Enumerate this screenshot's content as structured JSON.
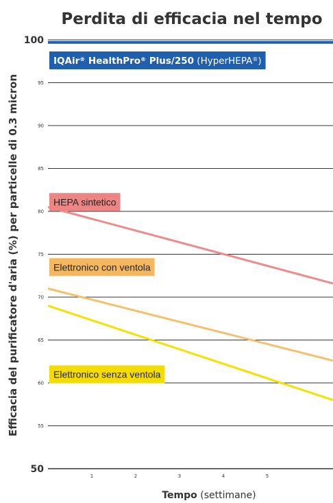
{
  "chart_data": {
    "type": "line",
    "title": "Perdita di efficacia nel tempo",
    "xlabel": {
      "bold": "Tempo",
      "normal": " (settimane)"
    },
    "ylabel": "Efficacia del purificatore d'aria (%) per particelle di 0.3 micron",
    "xlim": [
      0,
      6.5
    ],
    "ylim": [
      50,
      100
    ],
    "x_ticks": [
      "1",
      "2",
      "3",
      "4",
      "5"
    ],
    "y_ticks": [
      "50",
      "55",
      "60",
      "65",
      "70",
      "75",
      "80",
      "85",
      "90",
      "95",
      "100"
    ],
    "y_ticks_emphasized": [
      "50",
      "100"
    ],
    "grid": true,
    "series": [
      {
        "id": "iqair",
        "name_parts": [
          {
            "text": "IQAir",
            "bold": true
          },
          {
            "text": "®",
            "bold": true,
            "sup": true
          },
          {
            "text": " HealthPro",
            "bold": true
          },
          {
            "text": "®",
            "bold": true,
            "sup": true
          },
          {
            "text": " Plus/250",
            "bold": true
          },
          {
            "text": " (HyperHEPA",
            "bold": false
          },
          {
            "text": "®",
            "bold": false,
            "sup": true
          },
          {
            "text": ")",
            "bold": false
          }
        ],
        "x": [
          0,
          6.5
        ],
        "values": [
          99.7,
          99.7
        ],
        "color": "#1f5fad",
        "label_bg": "#1f5fad",
        "label_y": 97.6
      },
      {
        "id": "hepa",
        "name": "HEPA sintetico",
        "x": [
          0,
          6.5
        ],
        "values": [
          80.5,
          71.6
        ],
        "color": "#ee8a8a",
        "label_bg": "#ee8585",
        "label_y": 81.1
      },
      {
        "id": "elettronico-con",
        "name": "Elettronico con ventola",
        "x": [
          0,
          6.5
        ],
        "values": [
          71.0,
          62.6
        ],
        "color": "#f6bf6a",
        "label_bg": "#f6b85e",
        "label_y": 73.5
      },
      {
        "id": "elettronico-senza",
        "name": "Elettronico senza ventola",
        "x": [
          0,
          6.5
        ],
        "values": [
          69.0,
          58.0
        ],
        "color": "#f5e000",
        "label_bg": "#f5dc00",
        "label_y": 61.0
      }
    ]
  }
}
